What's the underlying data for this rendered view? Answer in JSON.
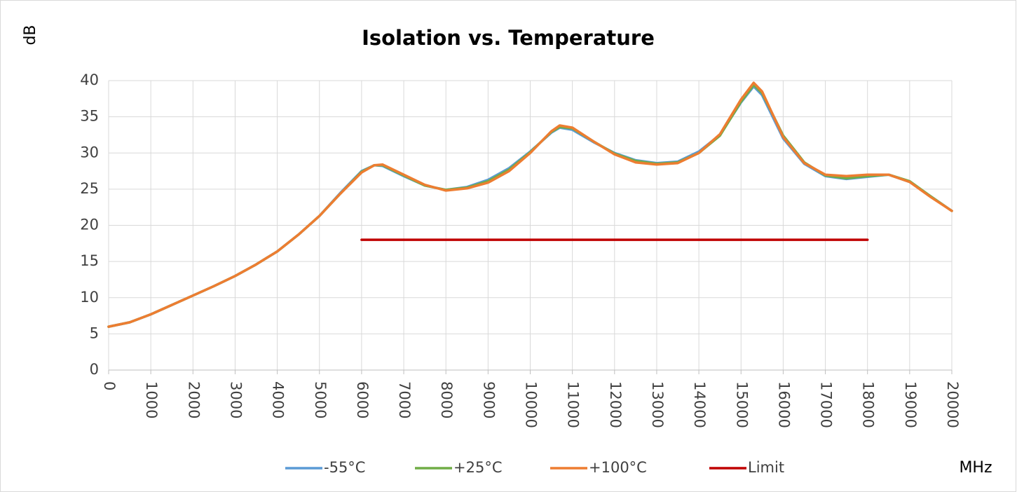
{
  "chart_data": {
    "type": "line",
    "title": "Isolation vs. Temperature",
    "y_label": "dB",
    "x_label": "MHz",
    "xlim": [
      0,
      20000
    ],
    "xticks": [
      0,
      1000,
      2000,
      3000,
      4000,
      5000,
      6000,
      7000,
      8000,
      9000,
      10000,
      11000,
      12000,
      13000,
      14000,
      15000,
      16000,
      17000,
      18000,
      19000,
      20000
    ],
    "ylim": [
      0,
      40
    ],
    "yticks": [
      0,
      5,
      10,
      15,
      20,
      25,
      30,
      35,
      40
    ],
    "grid": true,
    "legend": "bottom",
    "series": [
      {
        "name": "-55°C",
        "color": "#5b9bd5",
        "x": [
          0,
          500,
          1000,
          1500,
          2000,
          2500,
          3000,
          3500,
          4000,
          4500,
          5000,
          5500,
          6000,
          6300,
          6500,
          7000,
          7500,
          8000,
          8500,
          9000,
          9500,
          10000,
          10500,
          10700,
          11000,
          11500,
          12000,
          12500,
          13000,
          13500,
          14000,
          14500,
          15000,
          15300,
          15500,
          16000,
          16500,
          17000,
          17500,
          18000,
          18500,
          19000,
          19500,
          20000
        ],
        "values": [
          6.0,
          6.6,
          7.7,
          9.0,
          10.3,
          11.6,
          13.0,
          14.6,
          16.4,
          18.7,
          21.3,
          24.5,
          27.5,
          28.3,
          28.2,
          26.8,
          25.5,
          24.9,
          25.3,
          26.3,
          27.9,
          30.2,
          32.8,
          33.5,
          33.2,
          31.5,
          30.0,
          29.0,
          28.6,
          28.8,
          30.2,
          32.5,
          37.0,
          39.2,
          38.0,
          32.0,
          28.5,
          26.8,
          26.4,
          26.7,
          27.0,
          26.0,
          24.0,
          22.0
        ]
      },
      {
        "name": "+25°C",
        "color": "#70ad47",
        "x": [
          0,
          500,
          1000,
          1500,
          2000,
          2500,
          3000,
          3500,
          4000,
          4500,
          5000,
          5500,
          6000,
          6300,
          6500,
          7000,
          7500,
          8000,
          8500,
          9000,
          9500,
          10000,
          10500,
          10700,
          11000,
          11500,
          12000,
          12500,
          13000,
          13500,
          14000,
          14500,
          15000,
          15300,
          15500,
          16000,
          16500,
          17000,
          17500,
          18000,
          18500,
          19000,
          19500,
          20000
        ],
        "values": [
          6.0,
          6.6,
          7.7,
          9.0,
          10.3,
          11.6,
          13.0,
          14.6,
          16.4,
          18.7,
          21.3,
          24.4,
          27.4,
          28.3,
          28.3,
          26.9,
          25.5,
          24.9,
          25.2,
          26.1,
          27.7,
          30.1,
          32.9,
          33.6,
          33.4,
          31.6,
          29.9,
          28.9,
          28.5,
          28.7,
          30.0,
          32.4,
          37.1,
          39.4,
          38.3,
          32.4,
          28.7,
          26.9,
          26.5,
          26.8,
          27.0,
          26.1,
          24.0,
          22.0
        ]
      },
      {
        "name": "+100°C",
        "color": "#ed7d31",
        "x": [
          0,
          500,
          1000,
          1500,
          2000,
          2500,
          3000,
          3500,
          4000,
          4500,
          5000,
          5500,
          6000,
          6300,
          6500,
          7000,
          7500,
          8000,
          8500,
          9000,
          9500,
          10000,
          10500,
          10700,
          11000,
          11500,
          12000,
          12500,
          13000,
          13500,
          14000,
          14500,
          15000,
          15300,
          15500,
          16000,
          16500,
          17000,
          17500,
          18000,
          18500,
          19000,
          19500,
          20000
        ],
        "values": [
          6.0,
          6.6,
          7.7,
          9.0,
          10.3,
          11.6,
          13.0,
          14.6,
          16.4,
          18.7,
          21.3,
          24.4,
          27.3,
          28.3,
          28.4,
          27.0,
          25.6,
          24.8,
          25.1,
          25.9,
          27.5,
          30.0,
          33.0,
          33.8,
          33.5,
          31.6,
          29.8,
          28.7,
          28.4,
          28.6,
          30.0,
          32.6,
          37.4,
          39.7,
          38.5,
          32.2,
          28.6,
          27.0,
          26.8,
          27.0,
          27.0,
          26.0,
          23.9,
          22.0
        ]
      },
      {
        "name": "Limit",
        "color": "#c00000",
        "x": [
          6000,
          18000
        ],
        "values": [
          18,
          18
        ]
      }
    ]
  }
}
